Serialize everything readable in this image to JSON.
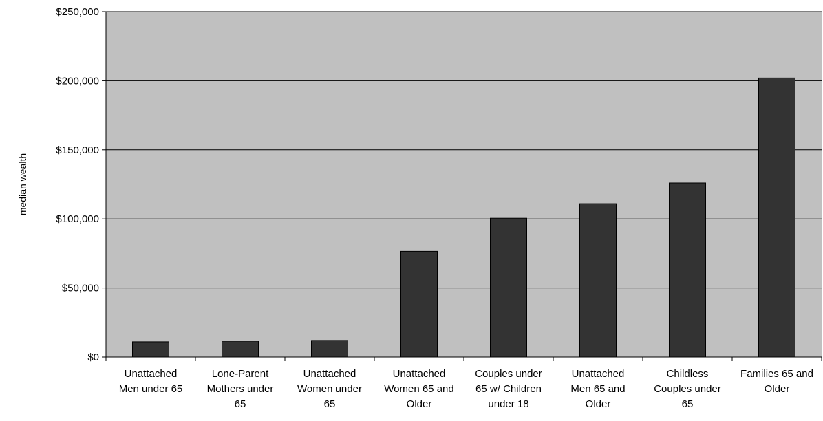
{
  "chart_data": {
    "type": "bar",
    "title": "",
    "xlabel": "",
    "ylabel": "median wealth",
    "ylim": [
      0,
      250000
    ],
    "yticks": [
      0,
      50000,
      100000,
      150000,
      200000,
      250000
    ],
    "ytick_labels": [
      "$0",
      "$50,000",
      "$100,000",
      "$150,000",
      "$200,000",
      "$250,000"
    ],
    "grid": true,
    "legend": "none",
    "categories": [
      [
        "Unattached",
        "Men under 65"
      ],
      [
        "Lone-Parent",
        "Mothers under",
        "65"
      ],
      [
        "Unattached",
        "Women under",
        "65"
      ],
      [
        "Unattached",
        "Women 65 and",
        "Older"
      ],
      [
        "Couples under",
        "65 w/ Children",
        "under 18"
      ],
      [
        "Unattached",
        "Men 65 and",
        "Older"
      ],
      [
        "Childless",
        "Couples under",
        "65"
      ],
      [
        "Families 65 and",
        "Older"
      ]
    ],
    "values": [
      11000,
      11500,
      12000,
      76500,
      100500,
      111000,
      126000,
      202000
    ],
    "colors": {
      "plot_background": "#c0c0c0",
      "bar_fill": "#333333",
      "bar_stroke": "#000000",
      "gridline": "#000000"
    }
  }
}
